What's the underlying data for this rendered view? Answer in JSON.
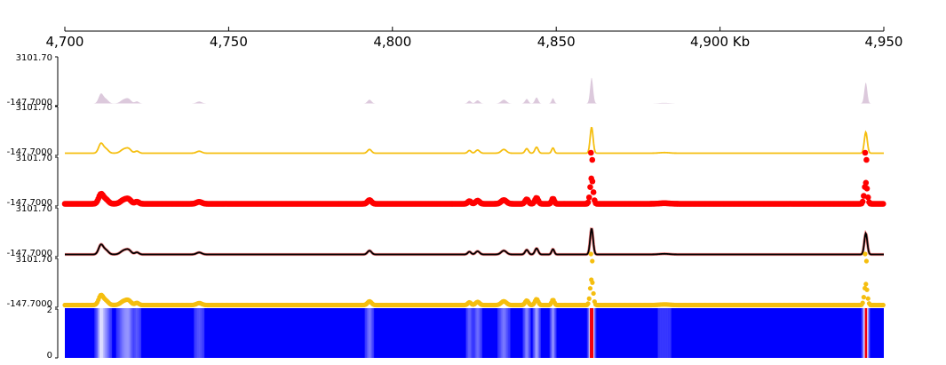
{
  "chart_data": {
    "type": "genome-browser-tracks",
    "x_axis": {
      "range": [
        4700,
        4950
      ],
      "unit": "Kb",
      "ticks": [
        4700,
        4750,
        4800,
        4850,
        4900,
        4950
      ],
      "tick_labels": [
        "4,700",
        "4,750",
        "4,800",
        "4,850",
        "4,900 Kb",
        "4,950"
      ]
    },
    "tracks": [
      {
        "kind": "filled",
        "color": "#dcc9dc",
        "ymax_label": "3101.70",
        "ymin_label": "-147.7000"
      },
      {
        "kind": "line",
        "color": "#f5be0f",
        "ymax_label": "3101.70",
        "ymin_label": "-147.7000"
      },
      {
        "kind": "points",
        "color": "#ff0000",
        "ymax_label": "3101.70",
        "ymin_label": "-147.7000"
      },
      {
        "kind": "line-overlay",
        "color": "#000000",
        "color2": "#f08080",
        "ymax_label": "3101.70",
        "ymin_label": "-147.7000"
      },
      {
        "kind": "points",
        "color": "#f5be0f",
        "ymax_label": "3101.70",
        "ymin_label": "-147.7000"
      },
      {
        "kind": "heatmap",
        "color_low": "#0000ff",
        "color_mid": "#ffffff",
        "color_high": "#ff0000",
        "ymax_label": "2",
        "ymin_label": "0"
      }
    ],
    "baseline": 0,
    "y_range": [
      -147.7,
      3101.7
    ],
    "peaks": [
      {
        "x": 4711,
        "y": 620,
        "width": 0.7
      },
      {
        "x": 4712.5,
        "y": 280,
        "width": 0.8
      },
      {
        "x": 4718,
        "y": 250,
        "width": 1.0
      },
      {
        "x": 4719.5,
        "y": 250,
        "width": 0.8
      },
      {
        "x": 4722,
        "y": 140,
        "width": 0.6
      },
      {
        "x": 4741,
        "y": 130,
        "width": 0.8
      },
      {
        "x": 4793,
        "y": 250,
        "width": 0.6
      },
      {
        "x": 4823.5,
        "y": 180,
        "width": 0.5
      },
      {
        "x": 4826,
        "y": 210,
        "width": 0.6
      },
      {
        "x": 4834,
        "y": 250,
        "width": 0.8
      },
      {
        "x": 4841,
        "y": 300,
        "width": 0.5
      },
      {
        "x": 4844,
        "y": 400,
        "width": 0.5
      },
      {
        "x": 4849,
        "y": 350,
        "width": 0.4
      },
      {
        "x": 4860.8,
        "y": 1720,
        "width": 0.45
      },
      {
        "x": 4883,
        "y": 40,
        "width": 1.5
      },
      {
        "x": 4944.5,
        "y": 1400,
        "width": 0.45
      }
    ]
  }
}
